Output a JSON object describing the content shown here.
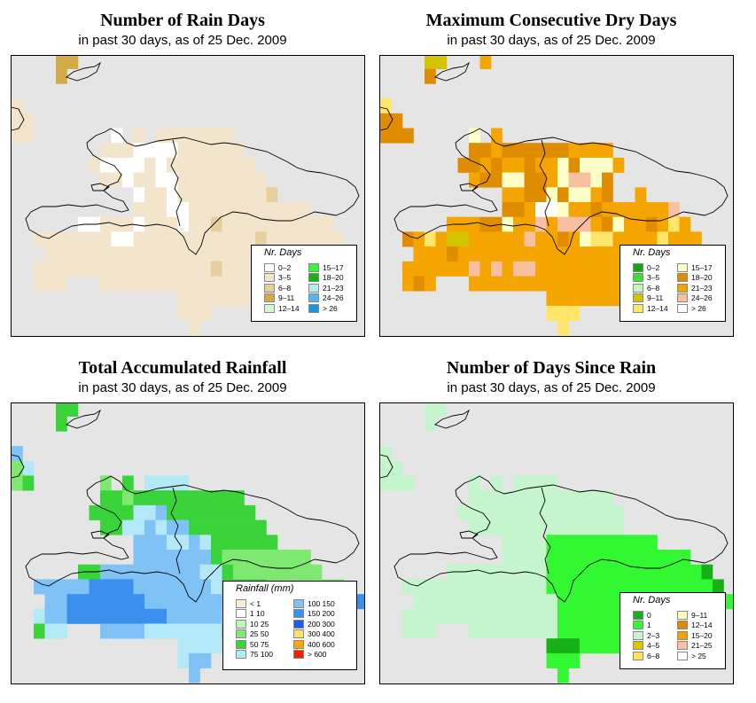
{
  "palettes": {
    "rain_days": [
      "#ffffff",
      "#f3e5cc",
      "#e6cf9c",
      "#d4aa46",
      "#d9f5d4",
      "#38f538",
      "#10b610",
      "#b3ecf7",
      "#56b4f0",
      "#1b95d8"
    ],
    "dry_days": [
      "#10a810",
      "#3ae03a",
      "#c3f5c3",
      "#d4c400",
      "#ffe66a",
      "#ffffc8",
      "#e08c00",
      "#f5a500",
      "#f8c0a0",
      "#ffffff"
    ],
    "rainfall": [
      "#f6edd9",
      "#ffffff",
      "#c0f5b8",
      "#7ee870",
      "#3ad43a",
      "#b3e8f7",
      "#7fc2f5",
      "#3a90ec",
      "#1e5ee0",
      "#ffe066",
      "#f8a800",
      "#f02000"
    ],
    "since_rain": [
      "#18b018",
      "#32f832",
      "#c5f5cd",
      "#dcc800",
      "#ffe060",
      "#ffffc2",
      "#e08800",
      "#f7a000",
      "#f8c0a0",
      "#ffffff"
    ]
  },
  "panels": [
    {
      "title": "Number of Rain Days",
      "subtitle": "in past 30 days, as of  25 Dec. 2009",
      "palette": "rain_days",
      "legend": {
        "title": "Nr. Days",
        "items": [
          {
            "label": "0–2",
            "color": "#ffffff"
          },
          {
            "label": "3–5",
            "color": "#f3e5cc"
          },
          {
            "label": "6–8",
            "color": "#e6cf9c"
          },
          {
            "label": "9–11",
            "color": "#d4aa46"
          },
          {
            "label": "12–14",
            "color": "#d9f5d4"
          },
          {
            "label": "15–17",
            "color": "#38f538"
          },
          {
            "label": "18–20",
            "color": "#10b610"
          },
          {
            "label": "21–23",
            "color": "#b3ecf7"
          },
          {
            "label": "24–26",
            "color": "#56b4f0"
          },
          {
            "label": "> 26",
            "color": "#1b95d8"
          }
        ]
      },
      "grid": [
        "....33..........................",
        "....3...........................",
        "................................",
        "1...............................",
        "11..............................",
        "11.......0.1.1111111............",
        "........1110000111111...........",
        ".......100001011111111..........",
        "........110110011111111.........",
        "...........0110111111112........",
        "...........1110011111111111.....",
        "......00111011101121111111111...",
        "..1111111001111111111121111111..",
        "...1111111111111111111211111111.",
        "..11111111111111112111112111....",
        "..111...111111111111111.........",
        "...............1111111..........",
        "...............111..............",
        "................1..............."
      ]
    },
    {
      "title": "Maximum Consecutive Dry Days",
      "subtitle": "in past 30 days, as of  25 Dec. 2009",
      "palette": "dry_days",
      "legend": {
        "title": "Nr. Days",
        "items": [
          {
            "label": "0–2",
            "color": "#10a810"
          },
          {
            "label": "3–5",
            "color": "#3ae03a"
          },
          {
            "label": "6–8",
            "color": "#c3f5c3"
          },
          {
            "label": "9–11",
            "color": "#d4c400"
          },
          {
            "label": "12–14",
            "color": "#ffe66a"
          },
          {
            "label": "15–17",
            "color": "#ffffc8"
          },
          {
            "label": "18–20",
            "color": "#e08c00"
          },
          {
            "label": "21–23",
            "color": "#f5a500"
          },
          {
            "label": "24–26",
            "color": "#f8c0a0"
          },
          {
            "label": "> 26",
            "color": "#ffffff"
          }
        ]
      },
      "grid": [
        "....33...7......................",
        "....6...........................",
        "................................",
        "4...............................",
        "66..............................",
        "666.....5.7.....................",
        "........6676666667777...........",
        ".......667677677565557..........",
        "........7665566758856...........",
        "...........7766565576..7........",
        "...........6679957767777778.....",
        "......7776657787888765776747....",
        "..674733777778776754477774777...",
        "...777677777777777777777777777..",
        "..77777787878877777777777777....",
        "..767...777777777777777.........",
        "...............7777777..........",
        "...............444..............",
        "................4..............."
      ]
    },
    {
      "title": "Total Accumulated Rainfall",
      "subtitle": "in past 30 days, as of  25 Dec. 2009",
      "palette": "rainfall",
      "legend": {
        "title": "Rainfall (mm)",
        "items": [
          {
            "label": "< 1",
            "color": "#f6edd9"
          },
          {
            "label": "1    10",
            "color": "#ffffff"
          },
          {
            "label": "10    25",
            "color": "#c0f5b8"
          },
          {
            "label": "25    50",
            "color": "#7ee870"
          },
          {
            "label": "50    75",
            "color": "#3ad43a"
          },
          {
            "label": "75   100",
            "color": "#b3e8f7"
          },
          {
            "label": "100  150",
            "color": "#7fc2f5"
          },
          {
            "label": "150  200",
            "color": "#3a90ec"
          },
          {
            "label": "200  300",
            "color": "#1e5ee0"
          },
          {
            "label": "300  400",
            "color": "#ffe066"
          },
          {
            "label": "400  600",
            "color": "#f8a800"
          },
          {
            "label": "> 600",
            "color": "#f02000"
          }
        ]
      },
      "grid": [
        "....44..........................",
        "....4...........................",
        "................................",
        "6...............................",
        "35..............................",
        "34......3.4.5555................",
        "........4434444444444...........",
        ".......444455644444444..........",
        "........445565664444444.........",
        "...........6665565444444........",
        "...........6666666433333333.....",
        "......4466666666655433333333....",
        "..6666677776666666544443333333..",
        "...66777777766666666544433333337",
        "..56677777777766666555544433....",
        "..455...666655555554444.........",
        "...............5555554..........",
        "...............566..............",
        "................6..............."
      ]
    },
    {
      "title": "Number of Days Since Rain",
      "subtitle": "in past 30 days, as of  25 Dec. 2009",
      "palette": "since_rain",
      "legend": {
        "title": "Nr. Days",
        "items": [
          {
            "label": "0",
            "color": "#18b018"
          },
          {
            "label": "1",
            "color": "#32f832"
          },
          {
            "label": "2–3",
            "color": "#c5f5cd"
          },
          {
            "label": "4–5",
            "color": "#dcc800"
          },
          {
            "label": "6–8",
            "color": "#ffe060"
          },
          {
            "label": "9–11",
            "color": "#ffffc2"
          },
          {
            "label": "12–14",
            "color": "#e08800"
          },
          {
            "label": "15–20",
            "color": "#f7a000"
          },
          {
            "label": "21–25",
            "color": "#f8c0a0"
          },
          {
            "label": "> 25",
            "color": "#ffffff"
          }
        ]
      },
      "grid": [
        "....22..........................",
        "....2...........................",
        "................................",
        "2...............................",
        "22..............................",
        "222.....2.2.2222................",
        "........2222222222222...........",
        ".......222222222222222..........",
        "........22222222222222..........",
        "...........22221111111111.......",
        "...........22221111111111111....",
        "......222222222111111111111110..",
        "..22222222222221111111111111110.",
        "...22222222222221111111111111111",
        "..22222222222222111111111111....",
        "..222...2222222211111111........",
        "...............0001111..........",
        "...............111..............",
        "................1..............."
      ]
    }
  ]
}
